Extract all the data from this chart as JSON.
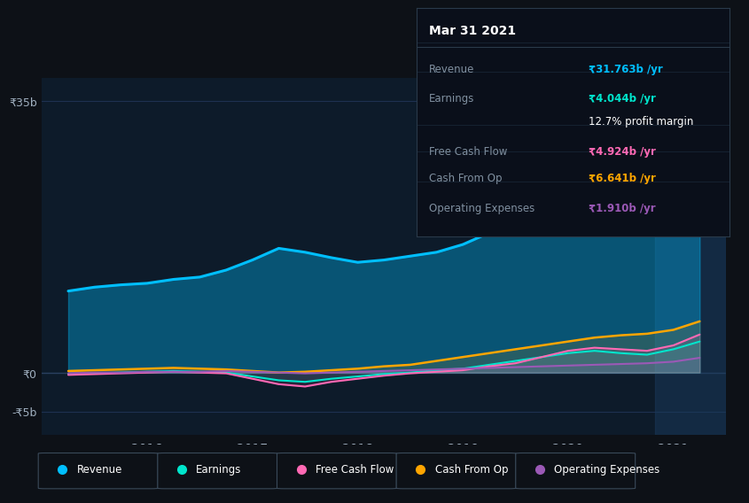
{
  "bg_color": "#0d1117",
  "chart_bg": "#0d1b2a",
  "grid_color": "#1e3050",
  "title": "Mar 31 2021",
  "tooltip": {
    "Revenue": {
      "value": "₹31.763b /yr",
      "color": "#00bfff"
    },
    "Earnings": {
      "value": "₹4.044b /yr",
      "color": "#00e5cc"
    },
    "profit_margin": "12.7% profit margin",
    "Free Cash Flow": {
      "value": "₹4.924b /yr",
      "color": "#ff69b4"
    },
    "Cash From Op": {
      "value": "₹6.641b /yr",
      "color": "#ffa500"
    },
    "Operating Expenses": {
      "value": "₹1.910b /yr",
      "color": "#9b59b6"
    }
  },
  "yticks_labels": [
    "₹35b",
    "₹0",
    "-₹5b"
  ],
  "yticks_values": [
    35,
    0,
    -5
  ],
  "ylim": [
    -8,
    38
  ],
  "xlim": [
    2015.0,
    2021.5
  ],
  "xtick_years": [
    2016,
    2017,
    2018,
    2019,
    2020,
    2021
  ],
  "legend_items": [
    {
      "label": "Revenue",
      "color": "#00bfff"
    },
    {
      "label": "Earnings",
      "color": "#00e5cc"
    },
    {
      "label": "Free Cash Flow",
      "color": "#ff69b4"
    },
    {
      "label": "Cash From Op",
      "color": "#ffa500"
    },
    {
      "label": "Operating Expenses",
      "color": "#9b59b6"
    }
  ],
  "series": {
    "x": [
      2015.25,
      2015.5,
      2015.75,
      2016.0,
      2016.25,
      2016.5,
      2016.75,
      2017.0,
      2017.25,
      2017.5,
      2017.75,
      2018.0,
      2018.25,
      2018.5,
      2018.75,
      2019.0,
      2019.25,
      2019.5,
      2019.75,
      2020.0,
      2020.25,
      2020.5,
      2020.75,
      2021.0,
      2021.25
    ],
    "Revenue": [
      10.5,
      11.0,
      11.3,
      11.5,
      12.0,
      12.3,
      13.2,
      14.5,
      16.0,
      15.5,
      14.8,
      14.2,
      14.5,
      15.0,
      15.5,
      16.5,
      18.0,
      20.0,
      22.0,
      23.5,
      24.0,
      22.5,
      21.0,
      24.0,
      31.8
    ],
    "Earnings": [
      -0.2,
      -0.1,
      0.0,
      0.1,
      0.2,
      0.1,
      0.0,
      -0.5,
      -1.0,
      -1.2,
      -0.8,
      -0.5,
      -0.2,
      0.0,
      0.3,
      0.5,
      1.0,
      1.5,
      2.0,
      2.5,
      2.8,
      2.5,
      2.3,
      3.0,
      4.0
    ],
    "Free Cash Flow": [
      -0.3,
      -0.2,
      -0.1,
      0.0,
      0.1,
      0.0,
      -0.1,
      -0.8,
      -1.5,
      -1.8,
      -1.2,
      -0.8,
      -0.4,
      -0.1,
      0.1,
      0.3,
      0.8,
      1.2,
      2.0,
      2.8,
      3.2,
      3.0,
      2.8,
      3.5,
      4.9
    ],
    "Cash From Op": [
      0.2,
      0.3,
      0.4,
      0.5,
      0.6,
      0.5,
      0.4,
      0.2,
      0.0,
      0.1,
      0.3,
      0.5,
      0.8,
      1.0,
      1.5,
      2.0,
      2.5,
      3.0,
      3.5,
      4.0,
      4.5,
      4.8,
      5.0,
      5.5,
      6.6
    ],
    "Operating Expenses": [
      -0.1,
      0.0,
      0.0,
      0.1,
      0.1,
      0.1,
      0.2,
      0.1,
      0.0,
      -0.1,
      0.0,
      0.1,
      0.2,
      0.3,
      0.4,
      0.5,
      0.6,
      0.7,
      0.8,
      0.9,
      1.0,
      1.1,
      1.2,
      1.4,
      1.9
    ]
  },
  "colors": {
    "Revenue": "#00bfff",
    "Earnings": "#00e5cc",
    "Free Cash Flow": "#ff69b4",
    "Cash From Op": "#ffa500",
    "Operating Expenses": "#9b59b6"
  },
  "fill_alpha": 0.35,
  "highlight_x_start": 2020.83,
  "highlight_x_end": 2021.5,
  "highlight_color": "#1a3a5c"
}
